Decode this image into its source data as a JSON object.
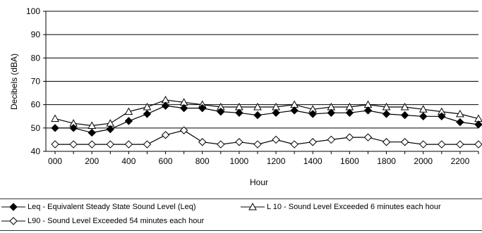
{
  "chart_data": {
    "type": "line",
    "title": "",
    "xlabel": "Hour",
    "ylabel": "Decibels (dBA)",
    "ylim": [
      40,
      100
    ],
    "yticks": [
      40,
      50,
      60,
      70,
      80,
      90,
      100
    ],
    "grid": true,
    "legend_position": "bottom",
    "x_tick_labels": [
      "000",
      "200",
      "400",
      "600",
      "800",
      "1000",
      "1200",
      "1400",
      "1600",
      "1800",
      "2000",
      "2200"
    ],
    "x": [
      "000",
      "100",
      "200",
      "300",
      "400",
      "500",
      "600",
      "700",
      "800",
      "900",
      "1000",
      "1100",
      "1200",
      "1300",
      "1400",
      "1500",
      "1600",
      "1700",
      "1800",
      "1900",
      "2000",
      "2100",
      "2200",
      "2300"
    ],
    "series": [
      {
        "name": "Leq - Equivalent Steady State Sound Level (Leq)",
        "marker": "diamond-filled",
        "values": [
          50,
          50,
          48,
          49.5,
          53,
          56,
          59.5,
          58.5,
          58.5,
          57,
          56.5,
          55.5,
          56.5,
          57.5,
          56,
          56.5,
          56.5,
          57.5,
          56,
          55.5,
          55,
          55,
          52.5,
          51.5
        ]
      },
      {
        "name": "L 10 - Sound Level Exceeded 6 minutes each hour",
        "marker": "triangle-open",
        "values": [
          54,
          52,
          51,
          52,
          57,
          59,
          62,
          61,
          60,
          59,
          59,
          59,
          59,
          60,
          58,
          59,
          59,
          60,
          59,
          59,
          58,
          57,
          56,
          54
        ]
      },
      {
        "name": "L90 - Sound Level Exceeded 54 minutes each hour",
        "marker": "diamond-open",
        "values": [
          43,
          43,
          43,
          43,
          43,
          43,
          47,
          49,
          44,
          43,
          44,
          43,
          45,
          43,
          44,
          45,
          46,
          46,
          44,
          44,
          43,
          43,
          43,
          43
        ]
      }
    ]
  }
}
